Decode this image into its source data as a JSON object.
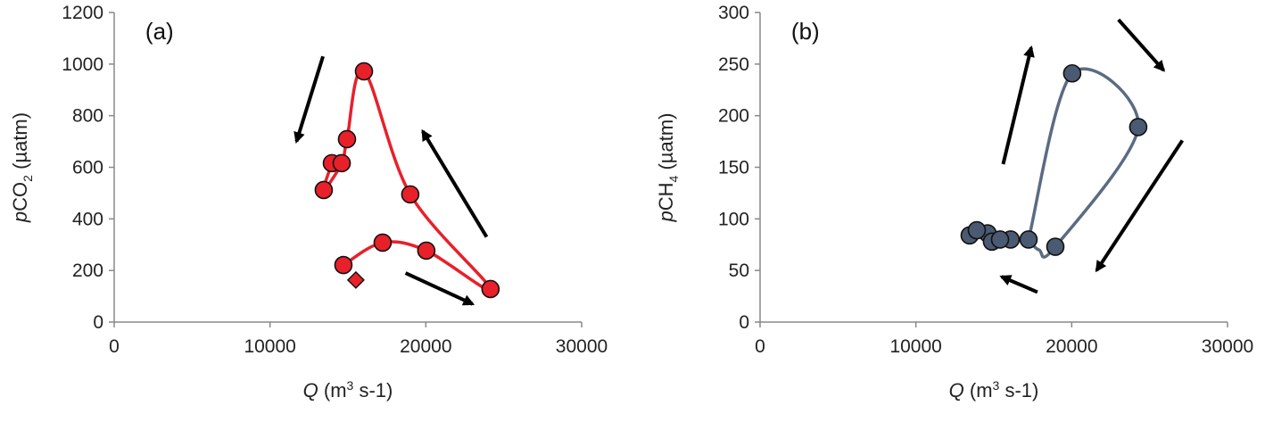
{
  "chart_data": [
    {
      "type": "scatter",
      "panel_label": "(a)",
      "xlabel": {
        "italic": "Q",
        "text": " (m",
        "sup": "3",
        "rest": " s-1)"
      },
      "ylabel": {
        "italic": "p",
        "text": "CO",
        "sub": "2",
        "rest": " (µatm)"
      },
      "xlim": [
        0,
        30000
      ],
      "ylim": [
        0,
        1200
      ],
      "xticks": [
        0,
        10000,
        20000,
        30000
      ],
      "yticks": [
        0,
        200,
        400,
        600,
        800,
        1000,
        1200
      ],
      "color": "#e8202a",
      "points": [
        {
          "x": 13970,
          "y": 616
        },
        {
          "x": 13450,
          "y": 512
        },
        {
          "x": 14600,
          "y": 616
        },
        {
          "x": 14940,
          "y": 709
        },
        {
          "x": 16030,
          "y": 972
        },
        {
          "x": 19000,
          "y": 495
        },
        {
          "x": 24150,
          "y": 128
        },
        {
          "x": 20030,
          "y": 277
        },
        {
          "x": 17230,
          "y": 308
        },
        {
          "x": 14710,
          "y": 221
        }
      ],
      "curve_order": [
        0,
        1,
        2,
        3,
        4,
        5,
        6,
        7,
        8,
        9
      ],
      "diamond": {
        "x": 15510,
        "y": 163
      },
      "arrows": [
        {
          "from": [
            13400,
            1030
          ],
          "to": [
            11700,
            700
          ]
        },
        {
          "from": [
            23900,
            330
          ],
          "to": [
            19800,
            740
          ]
        },
        {
          "from": [
            18700,
            190
          ],
          "to": [
            23000,
            70
          ]
        }
      ]
    },
    {
      "type": "scatter",
      "panel_label": "(b)",
      "xlabel": {
        "italic": "Q",
        "text": " (m",
        "sup": "3",
        "rest": " s-1)"
      },
      "ylabel": {
        "italic": "p",
        "text": "CH",
        "sub": "4",
        "rest": " (µatm)"
      },
      "xlim": [
        0,
        30000
      ],
      "ylim": [
        0,
        300
      ],
      "xticks": [
        0,
        10000,
        20000,
        30000
      ],
      "yticks": [
        0,
        50,
        100,
        150,
        200,
        250,
        300
      ],
      "color": "#4a5a72",
      "line_color": "#5b6b82",
      "points": [
        {
          "x": 13450,
          "y": 84
        },
        {
          "x": 14600,
          "y": 86
        },
        {
          "x": 13910,
          "y": 89
        },
        {
          "x": 14880,
          "y": 78
        },
        {
          "x": 16080,
          "y": 80
        },
        {
          "x": 15400,
          "y": 80
        },
        {
          "x": 17230,
          "y": 80
        },
        {
          "x": 18950,
          "y": 73
        },
        {
          "x": 24270,
          "y": 189
        },
        {
          "x": 20030,
          "y": 241
        }
      ],
      "curve": [
        [
          17230,
          80
        ],
        [
          20030,
          241
        ],
        [
          24270,
          189
        ],
        [
          18950,
          73
        ],
        [
          17900,
          70
        ],
        [
          17230,
          80
        ]
      ],
      "arrows": [
        {
          "from": [
            15600,
            153
          ],
          "to": [
            17400,
            266
          ]
        },
        {
          "from": [
            23000,
            293
          ],
          "to": [
            25900,
            244
          ]
        },
        {
          "from": [
            27100,
            176
          ],
          "to": [
            21600,
            50
          ]
        },
        {
          "from": [
            17800,
            29
          ],
          "to": [
            15500,
            44
          ]
        }
      ]
    }
  ]
}
